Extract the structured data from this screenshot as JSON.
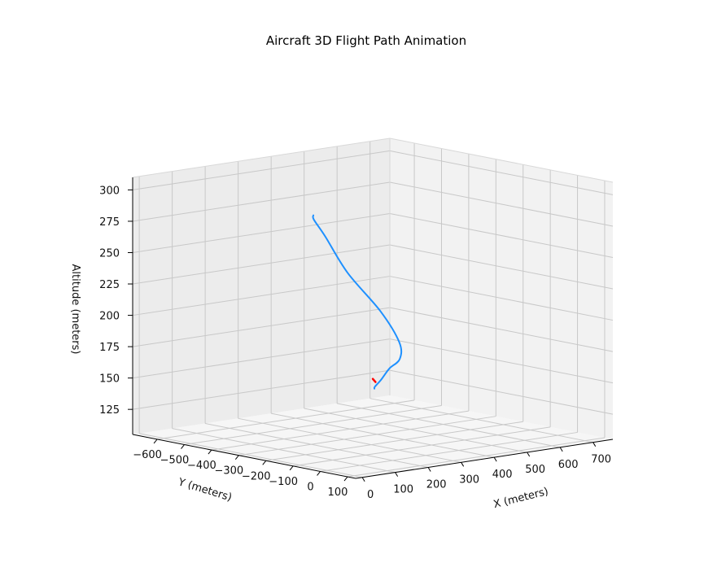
{
  "chart_data": {
    "type": "line",
    "projection": "3d",
    "title": "Aircraft 3D Flight Path Animation",
    "xlabel": "X (meters)",
    "ylabel": "Y (meters)",
    "zlabel": "Altitude (meters)",
    "xlim": [
      -20,
      760
    ],
    "ylim": [
      -690,
      130
    ],
    "zlim": [
      105,
      310
    ],
    "x_ticks": [
      "0",
      "100",
      "200",
      "300",
      "400",
      "500",
      "600",
      "700"
    ],
    "y_ticks": [
      "−600",
      "−500",
      "−400",
      "−300",
      "−200",
      "−100",
      "0",
      "100"
    ],
    "z_ticks": [
      "125",
      "150",
      "175",
      "200",
      "225",
      "250",
      "275",
      "300"
    ],
    "grid": true,
    "series": [
      {
        "color": "#1e90ff",
        "points": [
          [
            705,
            -680,
            113
          ],
          [
            690,
            -660,
            116
          ],
          [
            610,
            -540,
            130
          ],
          [
            470,
            -340,
            153
          ],
          [
            320,
            -120,
            176
          ],
          [
            170,
            60,
            203
          ],
          [
            80,
            100,
            233
          ],
          [
            30,
            40,
            263
          ],
          [
            12,
            -20,
            290
          ],
          [
            10,
            -60,
            302
          ],
          [
            25,
            -80,
            304
          ]
        ]
      },
      {
        "color": "#ff0000",
        "points": [
          [
            700,
            -680,
            121
          ],
          [
            710,
            -682,
            118
          ]
        ]
      }
    ]
  }
}
